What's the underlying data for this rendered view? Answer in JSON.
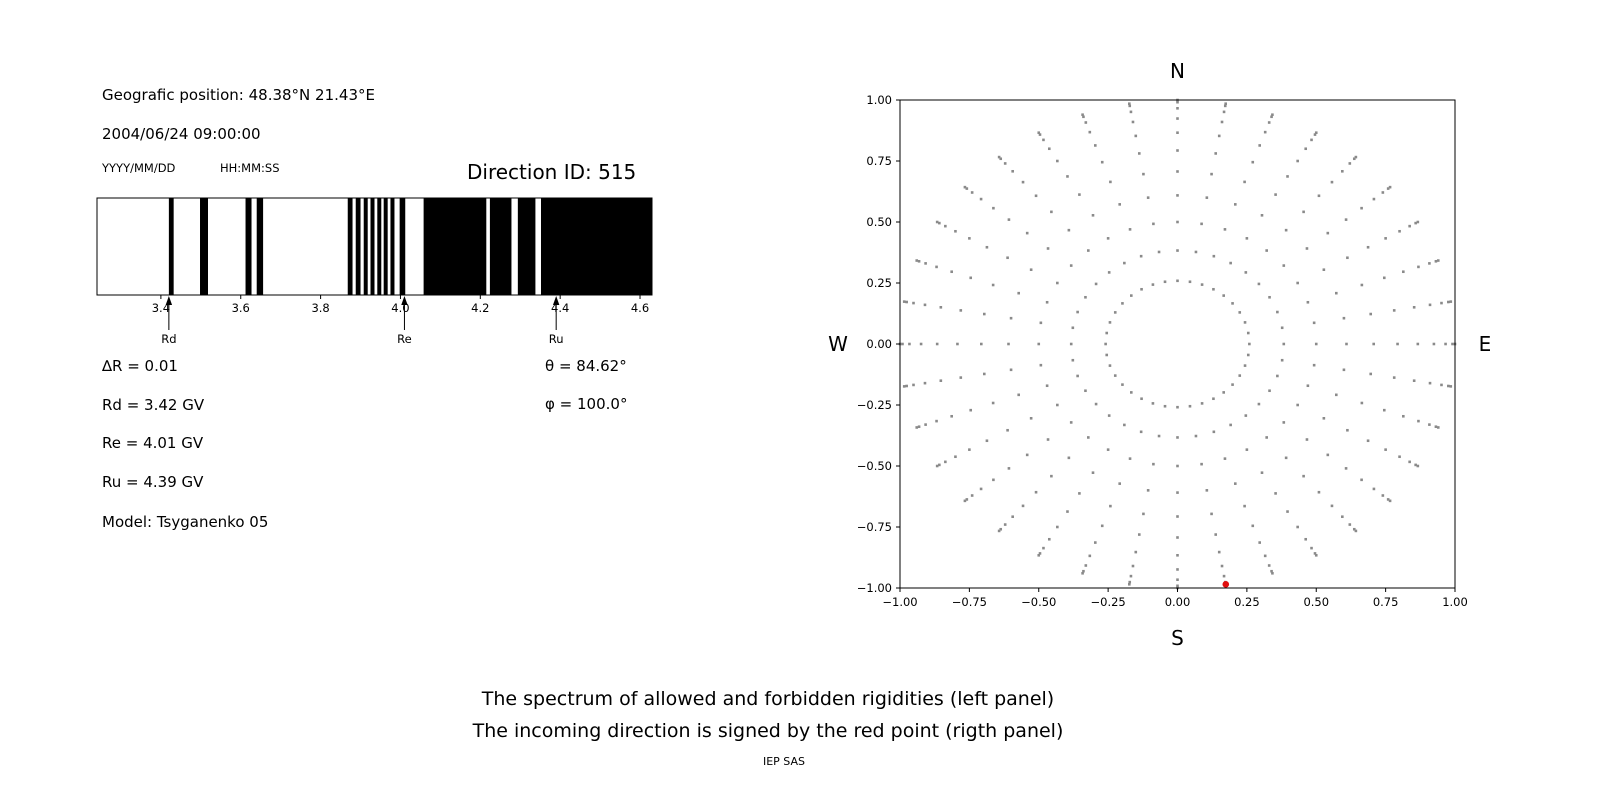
{
  "header": {
    "geo_position": "Geografic position: 48.38°N 21.43°E",
    "datetime": "2004/06/24 09:00:00",
    "date_format": "YYYY/MM/DD",
    "time_format": "HH:MM:SS",
    "direction_id": "Direction ID: 515"
  },
  "params": {
    "delta_r": "∆R = 0.01",
    "rd": "Rd = 3.42 GV",
    "re": "Re = 4.01 GV",
    "ru": "Ru = 4.39 GV",
    "model": "Model: Tsyganenko 05",
    "theta": "θ = 84.62°",
    "phi": "φ = 100.0°"
  },
  "captions": {
    "line1": "The spectrum of allowed and forbidden rigidities (left panel)",
    "line2": "The incoming direction is signed by the red point (rigth panel)",
    "footer": "IEP SAS"
  },
  "chart_data": [
    {
      "type": "bar",
      "name": "rigidity-spectrum",
      "title": "Direction ID: 515",
      "xlim": [
        3.24,
        4.63
      ],
      "xticks": [
        "3.4",
        "3.6",
        "3.8",
        "4.0",
        "4.2",
        "4.4",
        "4.6"
      ],
      "xtick_values": [
        3.4,
        3.6,
        3.8,
        4.0,
        4.2,
        4.4,
        4.6
      ],
      "bar_color": "#000000",
      "forbidden_intervals": [
        [
          3.42,
          3.432
        ],
        [
          3.498,
          3.518
        ],
        [
          3.612,
          3.627
        ],
        [
          3.64,
          3.656
        ],
        [
          3.868,
          3.88
        ],
        [
          3.888,
          3.9
        ],
        [
          3.908,
          3.918
        ],
        [
          3.925,
          3.935
        ],
        [
          3.942,
          3.952
        ],
        [
          3.958,
          3.968
        ],
        [
          3.975,
          3.985
        ],
        [
          3.998,
          4.012
        ],
        [
          4.058,
          4.215
        ],
        [
          4.224,
          4.278
        ],
        [
          4.294,
          4.338
        ],
        [
          4.352,
          4.63
        ]
      ],
      "markers": [
        {
          "label": "Rd",
          "value": 3.42
        },
        {
          "label": "Re",
          "value": 4.01
        },
        {
          "label": "Ru",
          "value": 4.39
        }
      ]
    },
    {
      "type": "scatter",
      "name": "arrival-direction-map",
      "xlim": [
        -1,
        1
      ],
      "ylim": [
        -1,
        1
      ],
      "xticks": [
        "−1.00",
        "−0.75",
        "−0.50",
        "−0.25",
        "0.00",
        "0.25",
        "0.50",
        "0.75",
        "1.00"
      ],
      "xtick_values": [
        -1.0,
        -0.75,
        -0.5,
        -0.25,
        0.0,
        0.25,
        0.5,
        0.75,
        1.0
      ],
      "yticks": [
        "1.00",
        "0.75",
        "0.50",
        "0.25",
        "0.00",
        "−0.25",
        "−0.50",
        "−0.75",
        "−1.00"
      ],
      "ytick_values": [
        1.0,
        0.75,
        0.5,
        0.25,
        0.0,
        -0.25,
        -0.5,
        -0.75,
        -1.0
      ],
      "compass": {
        "north": "N",
        "south": "S",
        "west": "W",
        "east": "E"
      },
      "spokes": {
        "count": 36,
        "start_deg": 0,
        "step_deg": 10,
        "radii": [
          0.259,
          0.383,
          0.5,
          0.609,
          0.707,
          0.793,
          0.866,
          0.924,
          0.966,
          0.991,
          1.0
        ]
      },
      "dot_color": "#8a8a8a",
      "red_point": {
        "x": 0.174,
        "y": -0.985,
        "color": "#e01010"
      }
    }
  ]
}
